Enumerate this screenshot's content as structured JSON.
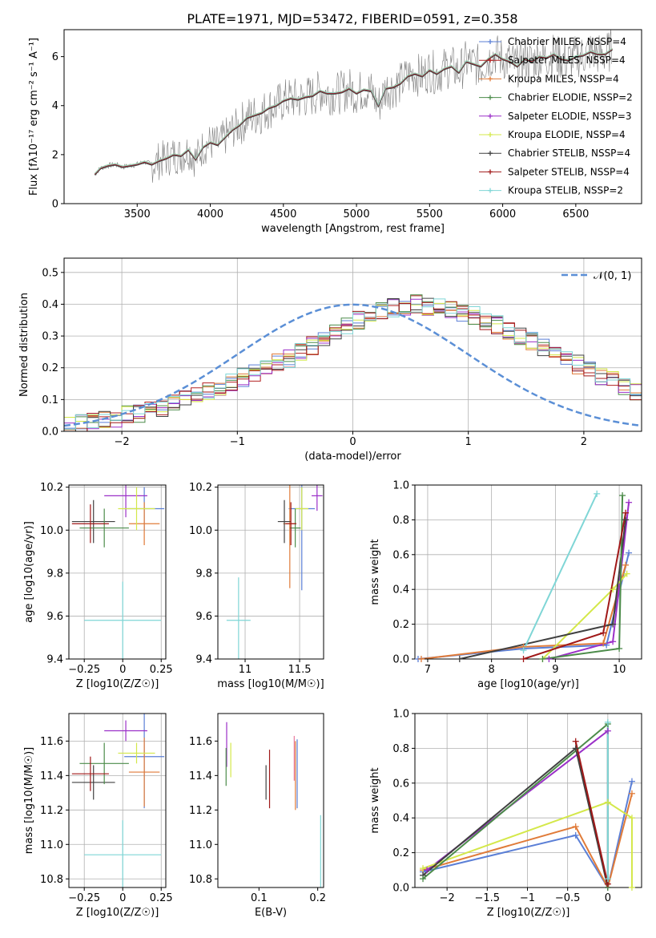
{
  "figure_title": "PLATE=1971, MJD=53472, FIBERID=0591, z=0.358",
  "colors": {
    "grid": "#b0b0b0",
    "axes": "#000000",
    "spectrum": "#808080"
  },
  "chart_data": [
    {
      "id": "spectrum",
      "type": "line",
      "title": "PLATE=1971, MJD=53472, FIBERID=0591, z=0.358",
      "xlabel": "wavelength [Angstrom, rest frame]",
      "ylabel": "Flux [fλ10⁻¹⁷ erg cm⁻² s⁻¹ A⁻¹]",
      "xlim": [
        3000,
        6950
      ],
      "ylim": [
        0,
        7.1
      ],
      "xticks": [
        3500,
        4000,
        4500,
        5000,
        5500,
        6000,
        6500
      ],
      "yticks": [
        0,
        2,
        4,
        6
      ],
      "grid": false,
      "legend_position": "right",
      "data_series": {
        "name": "data",
        "color": "#808080",
        "x": [
          3210,
          3250,
          3300,
          3350,
          3400,
          3450,
          3500,
          3550,
          3600,
          3650,
          3700,
          3750,
          3800,
          3850,
          3900,
          3950,
          4000,
          4050,
          4100,
          4150,
          4200,
          4250,
          4300,
          4350,
          4400,
          4450,
          4500,
          4550,
          4600,
          4650,
          4700,
          4750,
          4800,
          4850,
          4900,
          4950,
          5000,
          5050,
          5100,
          5150,
          5200,
          5250,
          5300,
          5350,
          5400,
          5450,
          5500,
          5550,
          5600,
          5650,
          5700,
          5750,
          5800,
          5850,
          5900,
          5950,
          6000,
          6050,
          6100,
          6150,
          6200,
          6250,
          6300,
          6350,
          6400,
          6450,
          6500,
          6550,
          6600,
          6650,
          6700,
          6750
        ],
        "y": [
          1.2,
          1.45,
          1.55,
          1.6,
          1.5,
          1.55,
          1.6,
          1.7,
          1.6,
          1.75,
          1.85,
          2.0,
          1.95,
          2.2,
          1.8,
          2.3,
          2.5,
          2.4,
          2.7,
          3.0,
          3.2,
          3.5,
          3.6,
          3.7,
          3.9,
          4.0,
          4.2,
          4.3,
          4.25,
          4.35,
          4.4,
          4.6,
          4.5,
          4.5,
          4.55,
          4.7,
          4.5,
          4.65,
          4.6,
          4.0,
          4.7,
          4.75,
          4.9,
          5.2,
          5.3,
          5.2,
          5.45,
          5.3,
          5.5,
          5.6,
          5.35,
          5.8,
          5.7,
          5.6,
          5.9,
          6.1,
          5.9,
          5.8,
          5.6,
          5.9,
          5.8,
          6.0,
          5.95,
          6.1,
          5.9,
          5.85,
          6.0,
          6.05,
          6.2,
          6.1,
          6.1,
          6.3
        ]
      },
      "series": [
        {
          "name": "Chabrier MILES, N_SSP=4",
          "color": "#5b7fd6",
          "marker": "+"
        },
        {
          "name": "Salpeter MILES, N_SSP=4",
          "color": "#b22222",
          "marker": "+"
        },
        {
          "name": "Kroupa MILES, N_SSP=4",
          "color": "#e07b39",
          "marker": "+"
        },
        {
          "name": "Chabrier ELODIE, N_SSP=2",
          "color": "#4c8c4a",
          "marker": "+"
        },
        {
          "name": "Salpeter ELODIE, N_SSP=3",
          "color": "#9b30c8",
          "marker": "+"
        },
        {
          "name": "Kroupa ELODIE, N_SSP=4",
          "color": "#d4e84a",
          "marker": "+"
        },
        {
          "name": "Chabrier STELIB, N_SSP=4",
          "color": "#404040",
          "marker": "+"
        },
        {
          "name": "Salpeter STELIB, N_SSP=4",
          "color": "#a01818",
          "marker": "+"
        },
        {
          "name": "Kroupa STELIB, N_SSP=2",
          "color": "#7fd6d6",
          "marker": "+"
        }
      ]
    },
    {
      "id": "residuals",
      "type": "line",
      "xlabel": "(data-model)/error",
      "ylabel": "Normed distribution",
      "xlim": [
        -2.5,
        2.5
      ],
      "ylim": [
        0,
        0.545
      ],
      "xticks": [
        -2,
        -1,
        0,
        1,
        2
      ],
      "yticks": [
        0.0,
        0.1,
        0.2,
        0.3,
        0.4,
        0.5
      ],
      "grid": true,
      "legend_position": "top-right",
      "legend": "𝒩(0, 1)",
      "bin_edges_start": -2.5,
      "bin_width": 0.1,
      "hist_values": [
        0.02,
        0.025,
        0.03,
        0.035,
        0.04,
        0.05,
        0.055,
        0.065,
        0.075,
        0.09,
        0.1,
        0.11,
        0.125,
        0.14,
        0.155,
        0.17,
        0.185,
        0.2,
        0.215,
        0.23,
        0.25,
        0.27,
        0.29,
        0.31,
        0.33,
        0.35,
        0.37,
        0.38,
        0.39,
        0.395,
        0.4,
        0.395,
        0.39,
        0.385,
        0.375,
        0.365,
        0.35,
        0.335,
        0.32,
        0.3,
        0.285,
        0.265,
        0.25,
        0.23,
        0.21,
        0.195,
        0.175,
        0.16,
        0.14,
        0.125,
        0.11
      ],
      "normal_curve": {
        "name": "N(0,1)",
        "color": "#5b8fd6",
        "mu": 0,
        "sigma": 1
      }
    },
    {
      "id": "age_vs_Z",
      "type": "scatter",
      "xlabel": "Z [log10(Z/Z☉)]",
      "ylabel": "age [log10(age/yr)]",
      "xlim": [
        -0.35,
        0.28
      ],
      "ylim": [
        9.4,
        10.21
      ],
      "xticks": [
        -0.25,
        0.0,
        0.25
      ],
      "yticks": [
        9.4,
        9.6,
        9.8,
        10.0,
        10.2
      ],
      "grid": true,
      "points": [
        {
          "x": 0.14,
          "y": 10.1,
          "xerr": 0.13,
          "yerr": 0.1,
          "color": "#5b7fd6"
        },
        {
          "x": 0.14,
          "y": 10.03,
          "xerr": 0.1,
          "yerr": 0.1,
          "color": "#e07b39"
        },
        {
          "x": 0.02,
          "y": 10.16,
          "xerr": 0.14,
          "yerr": 0.1,
          "color": "#9b30c8"
        },
        {
          "x": 0.09,
          "y": 10.1,
          "xerr": 0.12,
          "yerr": 0.1,
          "color": "#d4e84a"
        },
        {
          "x": -0.19,
          "y": 10.04,
          "xerr": 0.14,
          "yerr": 0.1,
          "color": "#404040"
        },
        {
          "x": -0.12,
          "y": 10.01,
          "xerr": 0.16,
          "yerr": 0.09,
          "color": "#4c8c4a"
        },
        {
          "x": -0.21,
          "y": 10.03,
          "xerr": 0.12,
          "yerr": 0.09,
          "color": "#a01818"
        },
        {
          "x": 0.0,
          "y": 9.58,
          "xerr": 0.25,
          "yerr": 0.18,
          "color": "#7fd6d6"
        }
      ]
    },
    {
      "id": "age_vs_mass",
      "type": "scatter",
      "xlabel": "mass [log10(M/M☉)]",
      "ylabel": "",
      "xlim": [
        10.75,
        11.72
      ],
      "ylim": [
        9.4,
        10.21
      ],
      "xticks": [
        11.0,
        11.5
      ],
      "yticks": [
        9.4,
        9.6,
        9.8,
        10.0,
        10.2
      ],
      "grid": true,
      "points": [
        {
          "x": 11.52,
          "y": 10.1,
          "xerr": 0.12,
          "yerr": 0.38,
          "color": "#5b7fd6"
        },
        {
          "x": 11.41,
          "y": 10.03,
          "xerr": 0.06,
          "yerr": 0.3,
          "color": "#e07b39"
        },
        {
          "x": 11.66,
          "y": 10.16,
          "xerr": 0.05,
          "yerr": 0.07,
          "color": "#9b30c8"
        },
        {
          "x": 11.52,
          "y": 10.1,
          "xerr": 0.06,
          "yerr": 0.1,
          "color": "#d4e84a"
        },
        {
          "x": 11.36,
          "y": 10.04,
          "xerr": 0.06,
          "yerr": 0.1,
          "color": "#404040"
        },
        {
          "x": 11.46,
          "y": 10.01,
          "xerr": 0.05,
          "yerr": 0.09,
          "color": "#4c8c4a"
        },
        {
          "x": 11.42,
          "y": 10.03,
          "xerr": 0.05,
          "yerr": 0.1,
          "color": "#a01818"
        },
        {
          "x": 10.94,
          "y": 9.58,
          "xerr": 0.11,
          "yerr": 0.2,
          "color": "#7fd6d6"
        }
      ]
    },
    {
      "id": "massweight_vs_age",
      "type": "line",
      "xlabel": "age [log10(age/yr)]",
      "ylabel": "mass weight",
      "xlim": [
        6.8,
        10.35
      ],
      "ylim": [
        0,
        1.0
      ],
      "xticks": [
        7,
        8,
        9,
        10
      ],
      "yticks": [
        0.0,
        0.2,
        0.4,
        0.6,
        0.8,
        1.0
      ],
      "grid": true,
      "series": [
        {
          "color": "#5b7fd6",
          "x": [
            6.85,
            8.5,
            9.8,
            10.15
          ],
          "y": [
            0.0,
            0.06,
            0.08,
            0.61
          ]
        },
        {
          "color": "#e07b39",
          "x": [
            6.9,
            8.5,
            9.75,
            10.1
          ],
          "y": [
            0.0,
            0.07,
            0.09,
            0.54
          ]
        },
        {
          "color": "#9b30c8",
          "x": [
            8.9,
            9.9,
            10.15
          ],
          "y": [
            0.0,
            0.1,
            0.9
          ]
        },
        {
          "color": "#d4e84a",
          "x": [
            8.8,
            9.9,
            10.12
          ],
          "y": [
            0.0,
            0.4,
            0.49
          ]
        },
        {
          "color": "#404040",
          "x": [
            7.5,
            9.9,
            10.1
          ],
          "y": [
            0.0,
            0.2,
            0.8
          ]
        },
        {
          "color": "#4c8c4a",
          "x": [
            8.8,
            10.0,
            10.05
          ],
          "y": [
            0.0,
            0.06,
            0.94
          ]
        },
        {
          "color": "#a01818",
          "x": [
            8.5,
            9.75,
            10.1
          ],
          "y": [
            0.0,
            0.15,
            0.84
          ]
        },
        {
          "color": "#7fd6d6",
          "x": [
            8.5,
            9.65
          ],
          "y": [
            0.05,
            0.95
          ]
        }
      ]
    },
    {
      "id": "mass_vs_Z",
      "type": "scatter",
      "xlabel": "Z [log10(Z/Z☉)]",
      "ylabel": "mass [log10(M/M☉)]",
      "xlim": [
        -0.35,
        0.28
      ],
      "ylim": [
        10.75,
        11.76
      ],
      "xticks": [
        -0.25,
        0.0,
        0.25
      ],
      "yticks": [
        10.8,
        11.0,
        11.2,
        11.4,
        11.6
      ],
      "grid": true,
      "points": [
        {
          "x": 0.14,
          "y": 11.51,
          "xerr": 0.13,
          "yerr": 0.3,
          "color": "#5b7fd6"
        },
        {
          "x": 0.14,
          "y": 11.42,
          "xerr": 0.1,
          "yerr": 0.2,
          "color": "#e07b39"
        },
        {
          "x": 0.02,
          "y": 11.66,
          "xerr": 0.14,
          "yerr": 0.06,
          "color": "#9b30c8"
        },
        {
          "x": 0.09,
          "y": 11.53,
          "xerr": 0.12,
          "yerr": 0.06,
          "color": "#d4e84a"
        },
        {
          "x": -0.19,
          "y": 11.36,
          "xerr": 0.14,
          "yerr": 0.1,
          "color": "#404040"
        },
        {
          "x": -0.12,
          "y": 11.47,
          "xerr": 0.16,
          "yerr": 0.12,
          "color": "#4c8c4a"
        },
        {
          "x": -0.21,
          "y": 11.41,
          "xerr": 0.12,
          "yerr": 0.1,
          "color": "#a01818"
        },
        {
          "x": 0.0,
          "y": 10.94,
          "xerr": 0.25,
          "yerr": 0.2,
          "color": "#7fd6d6"
        }
      ]
    },
    {
      "id": "mass_vs_ebv",
      "type": "scatter",
      "xlabel": "E(B-V)",
      "ylabel": "",
      "xlim": [
        0.03,
        0.21
      ],
      "ylim": [
        10.75,
        11.76
      ],
      "xticks": [
        0.1,
        0.2
      ],
      "yticks": [
        10.8,
        11.0,
        11.2,
        11.4,
        11.6
      ],
      "grid": false,
      "points": [
        {
          "x": 0.165,
          "y": 11.41,
          "xerr": 0,
          "yerr": 0.2,
          "color": "#5b7fd6"
        },
        {
          "x": 0.162,
          "y": 11.4,
          "xerr": 0,
          "yerr": 0.2,
          "color": "#e07b39"
        },
        {
          "x": 0.045,
          "y": 11.58,
          "xerr": 0,
          "yerr": 0.13,
          "color": "#9b30c8"
        },
        {
          "x": 0.052,
          "y": 11.49,
          "xerr": 0,
          "yerr": 0.1,
          "color": "#d4e84a"
        },
        {
          "x": 0.112,
          "y": 11.36,
          "xerr": 0,
          "yerr": 0.1,
          "color": "#404040"
        },
        {
          "x": 0.044,
          "y": 11.45,
          "xerr": 0,
          "yerr": 0.11,
          "color": "#4c8c4a"
        },
        {
          "x": 0.118,
          "y": 11.38,
          "xerr": 0,
          "yerr": 0.17,
          "color": "#a01818"
        },
        {
          "x": 0.205,
          "y": 10.95,
          "xerr": 0,
          "yerr": 0.22,
          "color": "#7fd6d6"
        },
        {
          "x": 0.16,
          "y": 11.5,
          "xerr": 0,
          "yerr": 0.13,
          "color": "#e8799e"
        }
      ]
    },
    {
      "id": "massweight_vs_Z",
      "type": "line",
      "xlabel": "Z [log10(Z/Z☉)]",
      "ylabel": "mass weight",
      "xlim": [
        -2.4,
        0.42
      ],
      "ylim": [
        0,
        1.0
      ],
      "xticks": [
        -2.0,
        -1.5,
        -1.0,
        -0.5,
        0.0
      ],
      "yticks": [
        0.0,
        0.2,
        0.4,
        0.6,
        0.8,
        1.0
      ],
      "grid": true,
      "series": [
        {
          "color": "#5b7fd6",
          "x": [
            -2.3,
            -0.4,
            0.0,
            0.3
          ],
          "y": [
            0.09,
            0.3,
            0.0,
            0.61
          ]
        },
        {
          "color": "#e07b39",
          "x": [
            -2.3,
            -0.4,
            0.0,
            0.3
          ],
          "y": [
            0.1,
            0.35,
            0.0,
            0.54
          ]
        },
        {
          "color": "#9b30c8",
          "x": [
            -2.25,
            0.0,
            0.0
          ],
          "y": [
            0.1,
            0.9,
            0.0
          ]
        },
        {
          "color": "#d4e84a",
          "x": [
            -2.3,
            0.0,
            0.3,
            0.3
          ],
          "y": [
            0.11,
            0.49,
            0.4,
            0.0
          ]
        },
        {
          "color": "#404040",
          "x": [
            -2.3,
            -0.4,
            0.0
          ],
          "y": [
            0.07,
            0.8,
            0.0
          ]
        },
        {
          "color": "#4c8c4a",
          "x": [
            -2.3,
            0.0,
            0.0
          ],
          "y": [
            0.05,
            0.94,
            0.0
          ]
        },
        {
          "color": "#a01818",
          "x": [
            -0.4,
            0.0
          ],
          "y": [
            0.84,
            0.02
          ]
        },
        {
          "color": "#7fd6d6",
          "x": [
            0.0,
            0.0
          ],
          "y": [
            0.95,
            0.05
          ]
        }
      ]
    }
  ]
}
